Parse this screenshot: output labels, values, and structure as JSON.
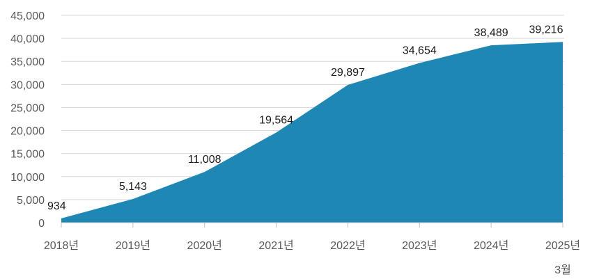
{
  "chart_data": {
    "type": "area",
    "title": "",
    "xlabel": "",
    "ylabel": "",
    "categories": [
      "2018년",
      "2019년",
      "2020년",
      "2021년",
      "2022년",
      "2023년",
      "2024년",
      "2025년"
    ],
    "category_sublabels": [
      "",
      "",
      "",
      "",
      "",
      "",
      "",
      "3월"
    ],
    "series": [
      {
        "values": [
          934,
          5143,
          11008,
          19564,
          29897,
          34654,
          38489,
          39216
        ],
        "data_labels": [
          "934",
          "5,143",
          "11,008",
          "19,564",
          "29,897",
          "34,654",
          "38,489",
          "39,216"
        ],
        "color": "#1f87b4"
      }
    ],
    "ylim": [
      0,
      45000
    ],
    "yticks": [
      0,
      5000,
      10000,
      15000,
      20000,
      25000,
      30000,
      35000,
      40000,
      45000
    ],
    "ytick_labels": [
      "0",
      "5,000",
      "10,000",
      "15,000",
      "20,000",
      "25,000",
      "30,000",
      "35,000",
      "40,000",
      "45,000"
    ],
    "grid": true,
    "legend": "none"
  }
}
